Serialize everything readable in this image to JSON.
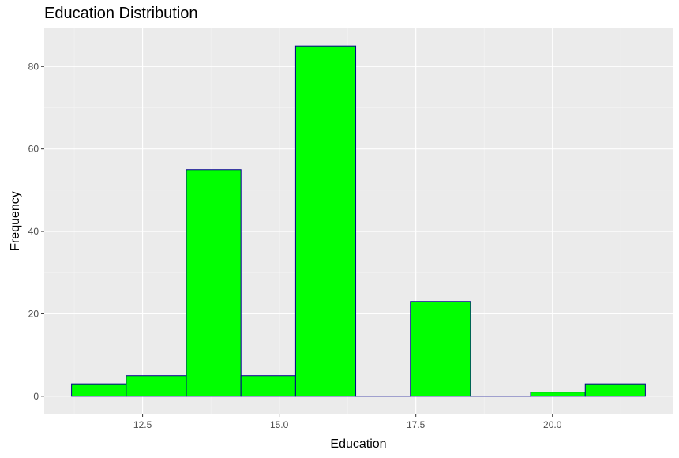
{
  "chart_data": {
    "type": "bar",
    "title": "Education Distribution",
    "xlabel": "Education",
    "ylabel": "Frequency",
    "bins": [
      {
        "x0": 11.2,
        "x1": 12.2,
        "count": 3
      },
      {
        "x0": 12.2,
        "x1": 13.3,
        "count": 5
      },
      {
        "x0": 13.3,
        "x1": 14.3,
        "count": 55
      },
      {
        "x0": 14.3,
        "x1": 15.3,
        "count": 5
      },
      {
        "x0": 15.3,
        "x1": 16.4,
        "count": 85
      },
      {
        "x0": 16.4,
        "x1": 17.4,
        "count": 0
      },
      {
        "x0": 17.4,
        "x1": 18.5,
        "count": 23
      },
      {
        "x0": 18.5,
        "x1": 19.6,
        "count": 0
      },
      {
        "x0": 19.6,
        "x1": 20.6,
        "count": 1
      },
      {
        "x0": 20.6,
        "x1": 21.7,
        "count": 3
      }
    ],
    "xlim": [
      10.7,
      22.2
    ],
    "ylim": [
      -4.25,
      89.25
    ],
    "x_ticks": [
      12.5,
      15.0,
      17.5,
      20.0
    ],
    "x_tick_labels": [
      "12.5",
      "15.0",
      "17.5",
      "20.0"
    ],
    "y_ticks": [
      0,
      20,
      40,
      60,
      80
    ],
    "y_tick_labels": [
      "0",
      "20",
      "40",
      "60",
      "80"
    ],
    "grid": true,
    "colors": {
      "panel_background": "#ebebeb",
      "grid_major": "#ffffff",
      "grid_minor": "#f5f5f5",
      "bar_fill": "#00ff00",
      "bar_outline": "#00008b",
      "tick_text": "#4d4d4d",
      "tick_mark": "#333333"
    }
  }
}
